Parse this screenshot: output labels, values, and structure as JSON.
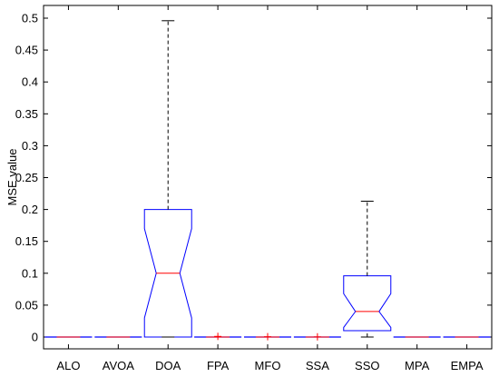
{
  "chart_data": {
    "type": "box",
    "title": "",
    "xlabel": "",
    "ylabel": "MSE value",
    "ylim": [
      0,
      0.52
    ],
    "yticks": [
      0,
      0.05,
      0.1,
      0.15,
      0.2,
      0.25,
      0.3,
      0.35,
      0.4,
      0.45,
      0.5
    ],
    "ytick_labels": [
      "0",
      "0.05",
      "0.1",
      "0.15",
      "0.2",
      "0.25",
      "0.3",
      "0.35",
      "0.4",
      "0.45",
      "0.5"
    ],
    "grid": false,
    "notched": true,
    "colors": {
      "box": "#0000ff",
      "median": "#ff0000",
      "whisker": "#000000",
      "outlier": "#ff0000"
    },
    "categories": [
      "ALO",
      "AVOA",
      "DOA",
      "FPA",
      "MFO",
      "SSA",
      "SSO",
      "MPA",
      "EMPA"
    ],
    "boxes": [
      {
        "category": "ALO",
        "min": 0,
        "q1": 0,
        "median": 0,
        "q3": 0,
        "max": 0,
        "outliers": []
      },
      {
        "category": "AVOA",
        "min": 0,
        "q1": 0,
        "median": 0,
        "q3": 0,
        "max": 0,
        "outliers": []
      },
      {
        "category": "DOA",
        "min": 0,
        "q1": 0,
        "median": 0.1,
        "q3": 0.2,
        "max": 0.496,
        "notch_low": 0.03,
        "notch_high": 0.17,
        "outliers": []
      },
      {
        "category": "FPA",
        "min": 0,
        "q1": 0,
        "median": 0,
        "q3": 0,
        "max": 0,
        "outliers": [
          0.001
        ]
      },
      {
        "category": "MFO",
        "min": 0,
        "q1": 0,
        "median": 0,
        "q3": 0,
        "max": 0,
        "outliers": [
          0.0005
        ]
      },
      {
        "category": "SSA",
        "min": 0,
        "q1": 0,
        "median": 0,
        "q3": 0,
        "max": 0,
        "outliers": [
          0.0003
        ]
      },
      {
        "category": "SSO",
        "min": 0,
        "q1": 0.01,
        "median": 0.04,
        "q3": 0.096,
        "max": 0.213,
        "notch_low": 0.015,
        "notch_high": 0.068,
        "outliers": []
      },
      {
        "category": "MPA",
        "min": 0,
        "q1": 0,
        "median": 0,
        "q3": 0,
        "max": 0,
        "outliers": []
      },
      {
        "category": "EMPA",
        "min": 0,
        "q1": 0,
        "median": 0,
        "q3": 0,
        "max": 0,
        "outliers": []
      }
    ]
  }
}
